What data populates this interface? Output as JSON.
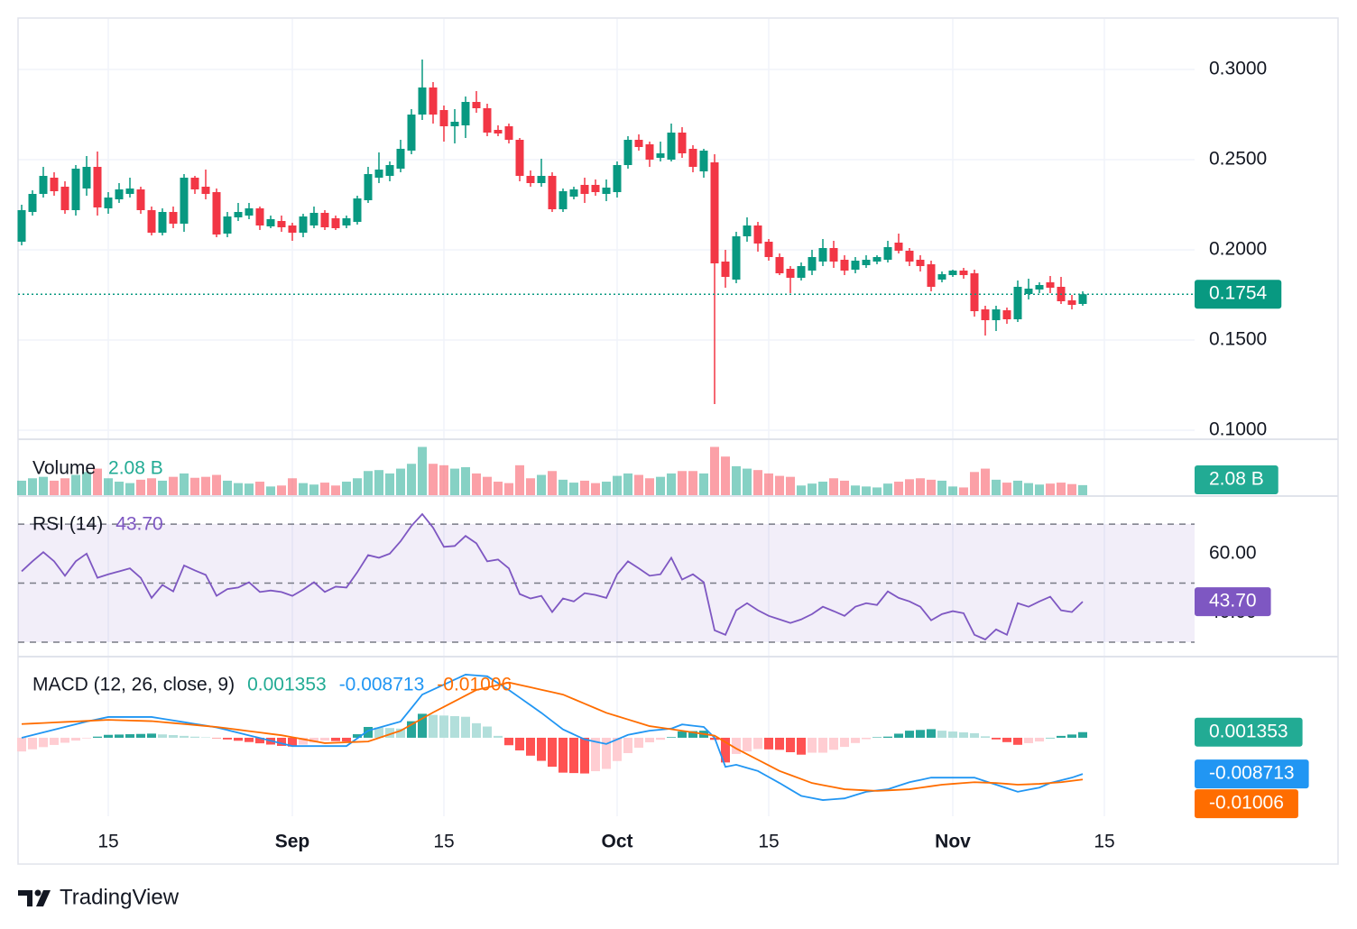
{
  "brand": "TradingView",
  "chart_data": [
    {
      "type": "candlestick",
      "x": [
        "08-07",
        "08-08",
        "08-09",
        "08-10",
        "08-11",
        "08-12",
        "08-13",
        "08-14",
        "08-15",
        "08-16",
        "08-17",
        "08-18",
        "08-19",
        "08-20",
        "08-21",
        "08-22",
        "08-23",
        "08-24",
        "08-25",
        "08-26",
        "08-27",
        "08-28",
        "08-29",
        "08-30",
        "08-31",
        "09-01",
        "09-02",
        "09-03",
        "09-04",
        "09-05",
        "09-06",
        "09-07",
        "09-08",
        "09-09",
        "09-10",
        "09-11",
        "09-12",
        "09-13",
        "09-14",
        "09-15",
        "09-16",
        "09-17",
        "09-18",
        "09-19",
        "09-20",
        "09-21",
        "09-22",
        "09-23",
        "09-24",
        "09-25",
        "09-26",
        "09-27",
        "09-28",
        "09-29",
        "09-30",
        "10-01",
        "10-02",
        "10-03",
        "10-04",
        "10-05",
        "10-06",
        "10-07",
        "10-08",
        "10-09",
        "10-10",
        "10-11",
        "10-12",
        "10-13",
        "10-14",
        "10-15",
        "10-16",
        "10-17",
        "10-18",
        "10-19",
        "10-20",
        "10-21",
        "10-22",
        "10-23",
        "10-24",
        "10-25",
        "10-26",
        "10-27",
        "10-28",
        "10-29",
        "10-30",
        "10-31",
        "11-01",
        "11-02",
        "11-03",
        "11-04",
        "11-05",
        "11-06",
        "11-07",
        "11-08",
        "11-09",
        "11-10",
        "11-11",
        "11-12",
        "11-13"
      ],
      "open": [
        0.2045,
        0.221,
        0.231,
        0.24,
        0.235,
        0.222,
        0.234,
        0.246,
        0.223,
        0.228,
        0.231,
        0.2335,
        0.222,
        0.2095,
        0.221,
        0.2145,
        0.24,
        0.235,
        0.232,
        0.209,
        0.218,
        0.219,
        0.223,
        0.213,
        0.216,
        0.2135,
        0.2095,
        0.2135,
        0.2205,
        0.2175,
        0.2135,
        0.2155,
        0.2275,
        0.24,
        0.241,
        0.245,
        0.255,
        0.275,
        0.29,
        0.2775,
        0.2685,
        0.269,
        0.282,
        0.2785,
        0.2665,
        0.2685,
        0.261,
        0.241,
        0.237,
        0.241,
        0.2225,
        0.2295,
        0.236,
        0.236,
        0.231,
        0.232,
        0.247,
        0.261,
        0.2585,
        0.251,
        0.25,
        0.265,
        0.256,
        0.2435,
        0.2485,
        0.1935,
        0.1835,
        0.2075,
        0.2135,
        0.2045,
        0.196,
        0.1895,
        0.1845,
        0.1885,
        0.1935,
        0.201,
        0.1945,
        0.189,
        0.1915,
        0.1935,
        0.1945,
        0.204,
        0.1995,
        0.1945,
        0.192,
        0.1835,
        0.186,
        0.1885,
        0.187,
        0.167,
        0.161,
        0.1665,
        0.1615,
        0.1755,
        0.178,
        0.182,
        0.1795,
        0.172,
        0.17
      ],
      "high": [
        0.225,
        0.233,
        0.246,
        0.243,
        0.238,
        0.247,
        0.252,
        0.2545,
        0.232,
        0.237,
        0.24,
        0.235,
        0.224,
        0.223,
        0.224,
        0.242,
        0.241,
        0.2445,
        0.234,
        0.221,
        0.226,
        0.226,
        0.224,
        0.219,
        0.219,
        0.215,
        0.22,
        0.224,
        0.222,
        0.219,
        0.219,
        0.23,
        0.246,
        0.254,
        0.249,
        0.261,
        0.278,
        0.3055,
        0.293,
        0.28,
        0.278,
        0.285,
        0.288,
        0.281,
        0.269,
        0.27,
        0.262,
        0.244,
        0.2505,
        0.243,
        0.234,
        0.235,
        0.24,
        0.239,
        0.239,
        0.249,
        0.263,
        0.264,
        0.26,
        0.26,
        0.27,
        0.268,
        0.258,
        0.256,
        0.253,
        0.2,
        0.21,
        0.218,
        0.2155,
        0.206,
        0.198,
        0.191,
        0.193,
        0.2,
        0.206,
        0.205,
        0.197,
        0.196,
        0.197,
        0.197,
        0.205,
        0.209,
        0.201,
        0.197,
        0.194,
        0.188,
        0.189,
        0.19,
        0.189,
        0.169,
        0.169,
        0.168,
        0.183,
        0.184,
        0.182,
        0.1855,
        0.185,
        0.175,
        0.177
      ],
      "low": [
        0.2025,
        0.219,
        0.229,
        0.23,
        0.22,
        0.219,
        0.23,
        0.219,
        0.22,
        0.226,
        0.229,
        0.22,
        0.208,
        0.208,
        0.212,
        0.21,
        0.231,
        0.228,
        0.207,
        0.207,
        0.216,
        0.217,
        0.211,
        0.212,
        0.21,
        0.205,
        0.207,
        0.212,
        0.211,
        0.211,
        0.212,
        0.214,
        0.226,
        0.237,
        0.238,
        0.243,
        0.253,
        0.272,
        0.27,
        0.26,
        0.259,
        0.262,
        0.276,
        0.263,
        0.263,
        0.259,
        0.238,
        0.235,
        0.235,
        0.221,
        0.221,
        0.228,
        0.226,
        0.23,
        0.227,
        0.229,
        0.245,
        0.255,
        0.246,
        0.249,
        0.249,
        0.251,
        0.243,
        0.24,
        0.1145,
        0.179,
        0.1815,
        0.2045,
        0.199,
        0.194,
        0.186,
        0.176,
        0.183,
        0.186,
        0.191,
        0.19,
        0.186,
        0.187,
        0.19,
        0.192,
        0.193,
        0.198,
        0.191,
        0.188,
        0.177,
        0.182,
        0.185,
        0.184,
        0.163,
        0.1525,
        0.155,
        0.159,
        0.16,
        0.1725,
        0.176,
        0.176,
        0.17,
        0.167,
        0.169
      ],
      "close": [
        0.222,
        0.231,
        0.241,
        0.2325,
        0.222,
        0.245,
        0.246,
        0.2235,
        0.229,
        0.2335,
        0.234,
        0.222,
        0.2095,
        0.221,
        0.2145,
        0.24,
        0.2335,
        0.231,
        0.2085,
        0.2185,
        0.221,
        0.223,
        0.2135,
        0.217,
        0.2125,
        0.2095,
        0.2185,
        0.2205,
        0.2125,
        0.212,
        0.2175,
        0.2285,
        0.242,
        0.2445,
        0.247,
        0.256,
        0.275,
        0.29,
        0.275,
        0.2685,
        0.271,
        0.282,
        0.2785,
        0.265,
        0.2645,
        0.261,
        0.241,
        0.237,
        0.241,
        0.2225,
        0.2325,
        0.2335,
        0.231,
        0.232,
        0.2345,
        0.247,
        0.261,
        0.257,
        0.25,
        0.2535,
        0.265,
        0.2535,
        0.246,
        0.255,
        0.1925,
        0.185,
        0.2075,
        0.2135,
        0.2035,
        0.196,
        0.187,
        0.1845,
        0.191,
        0.196,
        0.201,
        0.1935,
        0.1885,
        0.194,
        0.1945,
        0.196,
        0.2015,
        0.1995,
        0.1935,
        0.191,
        0.1795,
        0.1865,
        0.1885,
        0.186,
        0.166,
        0.161,
        0.167,
        0.1615,
        0.1795,
        0.1785,
        0.1805,
        0.179,
        0.1715,
        0.1695,
        0.1754
      ],
      "up_color": "#089981",
      "down_color": "#f23645",
      "ylim": [
        0.095,
        0.3285
      ],
      "yticks": [
        {
          "value": 0.1,
          "label": "0.1000"
        },
        {
          "value": 0.15,
          "label": "0.1500"
        },
        {
          "value": 0.2,
          "label": "0.2000"
        },
        {
          "value": 0.25,
          "label": "0.2500"
        },
        {
          "value": 0.3,
          "label": "0.3000"
        }
      ],
      "xticks": [
        {
          "value": "08-15",
          "label": "15"
        },
        {
          "value": "09-01",
          "label": "Sep"
        },
        {
          "value": "09-15",
          "label": "15"
        },
        {
          "value": "10-01",
          "label": "Oct"
        },
        {
          "value": "10-15",
          "label": "15"
        },
        {
          "value": "11-01",
          "label": "Nov"
        },
        {
          "value": "11-15",
          "label": "15"
        }
      ],
      "grid": true,
      "last_price_line": true
    },
    {
      "type": "bar",
      "title": "Volume",
      "values": [
        3.0,
        3.5,
        3.8,
        3.0,
        3.5,
        4.2,
        4.8,
        5.5,
        3.5,
        2.8,
        2.5,
        3.2,
        3.5,
        3.0,
        3.8,
        4.5,
        3.6,
        3.8,
        4.2,
        3.0,
        2.5,
        2.4,
        2.8,
        1.8,
        2.0,
        3.5,
        2.5,
        2.2,
        2.6,
        2.0,
        2.8,
        3.5,
        5.0,
        5.2,
        4.5,
        5.5,
        6.5,
        10.0,
        6.5,
        6.2,
        5.5,
        5.8,
        4.5,
        3.8,
        2.8,
        2.5,
        6.2,
        3.5,
        4.2,
        5.0,
        3.2,
        2.6,
        3.0,
        2.5,
        2.8,
        4.0,
        4.5,
        4.2,
        3.5,
        3.8,
        4.5,
        5.0,
        5.0,
        4.5,
        10.0,
        8.0,
        6.0,
        5.5,
        5.2,
        4.5,
        4.0,
        3.8,
        2.0,
        2.4,
        2.8,
        3.5,
        3.0,
        2.0,
        1.8,
        1.6,
        2.4,
        2.8,
        3.3,
        3.5,
        3.2,
        3.0,
        1.8,
        1.6,
        4.8,
        5.5,
        3.2,
        2.6,
        3.0,
        2.5,
        2.2,
        2.4,
        2.6,
        2.3,
        2.08
      ],
      "last_value_label": "2.08 B",
      "up_color": "#22ab94",
      "down_color": "#f7525f",
      "ylim": [
        0,
        11.4
      ]
    },
    {
      "type": "line",
      "title": "RSI (14)",
      "values": [
        54,
        57.4,
        60.5,
        57.4,
        52.5,
        57.4,
        60,
        51.8,
        53,
        54,
        55,
        51.8,
        45,
        49.4,
        47.2,
        56,
        54.3,
        52.8,
        45.7,
        48,
        48.5,
        50.3,
        47,
        47.5,
        47,
        45.7,
        47.8,
        50.3,
        47,
        48.8,
        48.5,
        53.7,
        59.5,
        58.6,
        60,
        64.2,
        69.4,
        73.4,
        68.8,
        62.3,
        62.6,
        66,
        63.5,
        57.4,
        58,
        55,
        46.3,
        44.8,
        45.7,
        40.2,
        44.8,
        43.8,
        46.6,
        46,
        45,
        53,
        57.4,
        55,
        52.5,
        53,
        58.6,
        51.2,
        53,
        50.3,
        34,
        32.5,
        40.8,
        43.2,
        40.8,
        38.9,
        37.7,
        36.5,
        37.7,
        39.5,
        42,
        40.5,
        38.9,
        42,
        43.2,
        42.6,
        47.2,
        45,
        43.8,
        42,
        37.4,
        39.5,
        40.5,
        39.8,
        32.5,
        30.9,
        34.3,
        32.5,
        43.2,
        42,
        43.8,
        45.4,
        40.8,
        40.2,
        43.7
      ],
      "last_value_label": "43.70",
      "color": "#7e57c2",
      "ylim": [
        25.4,
        78.9
      ],
      "yticks": [
        {
          "value": 40,
          "label": "40.00"
        },
        {
          "value": 60,
          "label": "60.00"
        }
      ],
      "levels": [
        70,
        50,
        30
      ]
    },
    {
      "type": "macd",
      "title": "MACD (12, 26, close, 9)",
      "histogram": [
        -0.0033,
        -0.00278,
        -0.00225,
        -0.00173,
        -0.0012,
        -0.00068,
        -0.00015,
        0.00027,
        0.0007,
        0.00077,
        0.00085,
        0.00092,
        0.001,
        0.00081,
        0.00064,
        0.00045,
        0.00026,
        9e-05,
        -0.0001,
        -0.00041,
        -0.00072,
        -0.00103,
        -0.00134,
        -0.00164,
        -0.00196,
        -0.00213,
        -0.00165,
        -0.00117,
        -0.0007,
        -0.0008,
        -0.0009,
        0.00085,
        0.0026,
        0.00246,
        0.00234,
        0.0022,
        0.00398,
        0.00577,
        0.0055,
        0.00535,
        0.0052,
        0.00505,
        0.0035,
        0.0027,
        0.00045,
        -0.0018,
        -0.00305,
        -0.00431,
        -0.00556,
        -0.00698,
        -0.0084,
        -0.0085,
        -0.0086,
        -0.00805,
        -0.0075,
        -0.0056,
        -0.0037,
        -0.0024,
        -0.0011,
        -0.00048,
        0.00015,
        0.00152,
        0.0016,
        0.0017,
        -0.0005,
        -0.00595,
        -0.0039,
        -0.0033,
        -0.0027,
        -0.0028,
        -0.0029,
        -0.00348,
        -0.00407,
        -0.0036,
        -0.0036,
        -0.0029,
        -0.0022,
        -0.00127,
        -0.00033,
        0.0001,
        0.00027,
        0.00098,
        0.0017,
        0.00188,
        0.00207,
        0.0017,
        0.0015,
        0.0013,
        0.0011,
        0.00035,
        -0.0004,
        -0.00105,
        -0.0017,
        -0.0013,
        -0.0009,
        0,
        0.00045,
        0.00078,
        0.001353
      ],
      "histogram_colors": {
        "up_strong": "#26a69a",
        "up_weak": "#b2dfdb",
        "down_strong": "#ff5252",
        "down_weak": "#ffcdd2"
      },
      "histogram_label_color": "#22ab94",
      "series": [
        {
          "color": "#2196f3",
          "values": [
            0,
            0.00065,
            0.0013,
            0.00195,
            0.0026,
            0.00325,
            0.0039,
            0.00445,
            0.005,
            0.005,
            0.005,
            0.005,
            0.005,
            0.00458,
            0.00417,
            0.00375,
            0.00333,
            0.00292,
            0.0025,
            0.00186,
            0.00121,
            0.00057,
            -7e-05,
            -0.00071,
            -0.00136,
            -0.002,
            -0.002,
            -0.002,
            -0.002,
            -0.002,
            -0.002,
            -0.00015,
            0.0017,
            0.00243,
            0.00317,
            0.0039,
            0.00715,
            0.0104,
            0.0116,
            0.0128,
            0.014,
            0.0152,
            0.015,
            0.0148,
            0.01315,
            0.0115,
            0.00967,
            0.00783,
            0.006,
            0.004,
            0.002,
            0.0008,
            -0.0004,
            -0.00095,
            -0.0015,
            -0.0004,
            0.0007,
            0.0012,
            0.0017,
            0.00195,
            0.0022,
            0.0032,
            0.0029,
            0.0026,
            0,
            -0.007,
            -0.0065,
            -0.00725,
            -0.008,
            -0.00945,
            -0.0109,
            -0.01245,
            -0.014,
            -0.0145,
            -0.015,
            -0.0148,
            -0.0146,
            -0.0138,
            -0.013,
            -0.0127,
            -0.0124,
            -0.01155,
            -0.0107,
            -0.01015,
            -0.0096,
            -0.0096,
            -0.0096,
            -0.0096,
            -0.0096,
            -0.01045,
            -0.0113,
            -0.01215,
            -0.013,
            -0.0125,
            -0.012,
            -0.0109,
            -0.01025,
            -0.0096,
            -0.008713
          ]
        },
        {
          "color": "#ff6d00",
          "values": [
            0.0033,
            0.00343,
            0.00355,
            0.00368,
            0.0038,
            0.00393,
            0.00405,
            0.00418,
            0.0043,
            0.00423,
            0.00415,
            0.00408,
            0.004,
            0.00377,
            0.00353,
            0.0033,
            0.00307,
            0.00283,
            0.0026,
            0.00227,
            0.00193,
            0.0016,
            0.00127,
            0.00093,
            0.0006,
            0.00013,
            -0.00035,
            -0.00083,
            -0.0013,
            -0.0012,
            -0.0011,
            -0.001,
            -0.0009,
            -3e-05,
            0.00083,
            0.0017,
            0.00317,
            0.00463,
            0.0061,
            0.00745,
            0.0088,
            0.01015,
            0.0115,
            0.0121,
            0.0127,
            0.0133,
            0.01272,
            0.01214,
            0.01156,
            0.01098,
            0.0104,
            0.0093,
            0.0082,
            0.0071,
            0.006,
            0.0052,
            0.0044,
            0.0036,
            0.0028,
            0.00243,
            0.00205,
            0.00168,
            0.0013,
            0.0009,
            0.0005,
            -0.00105,
            -0.0026,
            -0.00395,
            -0.0053,
            -0.00665,
            -0.008,
            -0.00897,
            -0.00993,
            -0.0109,
            -0.0114,
            -0.0119,
            -0.0124,
            -0.01253,
            -0.01267,
            -0.0128,
            -0.01267,
            -0.01253,
            -0.0124,
            -0.01203,
            -0.01167,
            -0.0113,
            -0.0111,
            -0.0109,
            -0.0107,
            -0.0108,
            -0.0109,
            -0.0111,
            -0.0113,
            -0.0112,
            -0.0111,
            -0.0109,
            -0.0107,
            -0.01038,
            -0.01006
          ]
        }
      ],
      "ylim": [
        -0.0189,
        0.0191
      ]
    }
  ]
}
